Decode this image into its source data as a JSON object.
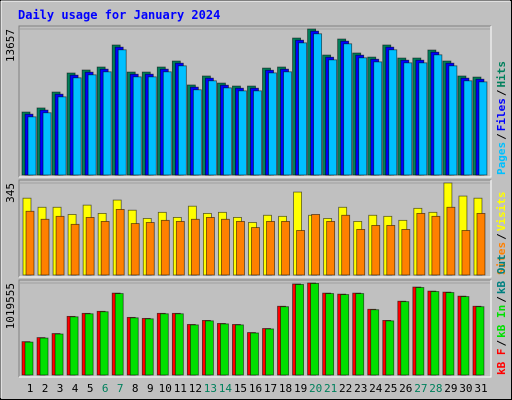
{
  "legend_separator": "/",
  "chart_data": [
    {
      "type": "bar",
      "title": "Daily usage for January 2024",
      "draw_reversed": true,
      "ylim": [
        0,
        13657
      ],
      "yticks": [
        13657
      ],
      "series": [
        {
          "name": "Pages",
          "color": "#00c0ff",
          "values": [
            5440,
            5820,
            7310,
            9090,
            9370,
            9650,
            11710,
            9180,
            9180,
            9650,
            10210,
            7970,
            8810,
            8150,
            7870,
            7870,
            9550,
            9650,
            12360,
            13207,
            10770,
            12270,
            10960,
            10580,
            11710,
            10490,
            10490,
            11240,
            10210,
            8810,
            8710
          ]
        },
        {
          "name": "Files",
          "color": "#0000ff",
          "values": [
            5690,
            6070,
            7560,
            9340,
            9620,
            9900,
            11960,
            9430,
            9430,
            9900,
            10460,
            8220,
            9060,
            8400,
            8120,
            8120,
            9800,
            9900,
            12610,
            13457,
            11020,
            12520,
            11210,
            10830,
            11960,
            10740,
            10740,
            11490,
            10460,
            9060,
            8960
          ]
        },
        {
          "name": "Hits",
          "color": "#00805c",
          "values": [
            5890,
            6270,
            7760,
            9540,
            9820,
            10100,
            12160,
            9630,
            9630,
            10100,
            10660,
            8420,
            9260,
            8600,
            8320,
            8320,
            10000,
            10100,
            12810,
            13657,
            11220,
            12720,
            11410,
            11030,
            12160,
            10940,
            10940,
            11690,
            10660,
            9260,
            9160
          ]
        }
      ]
    },
    {
      "type": "bar",
      "draw_reversed": true,
      "ylim": [
        0,
        345
      ],
      "yticks": [
        345
      ],
      "series": [
        {
          "name": "Sites",
          "color": "#ff8000",
          "values": [
            239,
            209,
            220,
            190,
            216,
            201,
            246,
            193,
            197,
            205,
            201,
            209,
            216,
            209,
            201,
            178,
            201,
            201,
            167,
            227,
            201,
            224,
            171,
            186,
            186,
            171,
            231,
            220,
            254,
            167,
            231
          ]
        },
        {
          "name": "Visits",
          "color": "#ffff00",
          "values": [
            288,
            254,
            254,
            227,
            262,
            231,
            281,
            243,
            212,
            235,
            216,
            258,
            231,
            235,
            216,
            197,
            224,
            220,
            311,
            224,
            212,
            254,
            201,
            224,
            220,
            205,
            250,
            235,
            345,
            296,
            288
          ]
        }
      ]
    },
    {
      "type": "bar",
      "draw_reversed": false,
      "ylim": [
        0,
        1019555
      ],
      "yticks": [
        1019555
      ],
      "categories": [
        "1",
        "2",
        "3",
        "4",
        "5",
        "6",
        "7",
        "8",
        "9",
        "10",
        "11",
        "12",
        "13",
        "14",
        "15",
        "16",
        "17",
        "18",
        "19",
        "20",
        "21",
        "22",
        "23",
        "24",
        "25",
        "26",
        "27",
        "28",
        "29",
        "30",
        "31"
      ],
      "category_colors": [
        "#000000",
        "#000000",
        "#000000",
        "#000000",
        "#000000",
        "#00805c",
        "#00805c",
        "#000000",
        "#000000",
        "#000000",
        "#000000",
        "#000000",
        "#00805c",
        "#00805c",
        "#000000",
        "#000000",
        "#000000",
        "#000000",
        "#000000",
        "#00805c",
        "#00805c",
        "#000000",
        "#000000",
        "#000000",
        "#000000",
        "#000000",
        "#00805c",
        "#00805c",
        "#000000",
        "#000000",
        "#000000"
      ],
      "series": [
        {
          "name": "kB F",
          "color": "#ff0000",
          "values": [
            369700,
            414500,
            459400,
            649800,
            683400,
            705900,
            907500,
            638600,
            627400,
            683400,
            683400,
            560200,
            605000,
            571400,
            560200,
            470600,
            515400,
            761900,
            1008300,
            1019555,
            907500,
            896300,
            907500,
            728300,
            605000,
            817900,
            974800,
            929900,
            918700,
            873900,
            761900
          ]
        },
        {
          "name": "kB In",
          "color": "#00e000",
          "values": [
            364700,
            409500,
            454400,
            644800,
            678400,
            700900,
            902500,
            633600,
            622400,
            678400,
            678400,
            555200,
            600000,
            566400,
            555200,
            465600,
            510400,
            756900,
            1003300,
            1014555,
            902500,
            891300,
            902500,
            723300,
            600000,
            812900,
            969800,
            924900,
            913700,
            868900,
            756900
          ]
        },
        {
          "name": "kB Out",
          "color": "#008080",
          "values": [
            0,
            0,
            0,
            0,
            0,
            0,
            0,
            0,
            0,
            0,
            0,
            0,
            0,
            0,
            0,
            0,
            0,
            0,
            0,
            0,
            0,
            0,
            0,
            0,
            0,
            0,
            0,
            0,
            0,
            0,
            0
          ]
        }
      ]
    }
  ]
}
